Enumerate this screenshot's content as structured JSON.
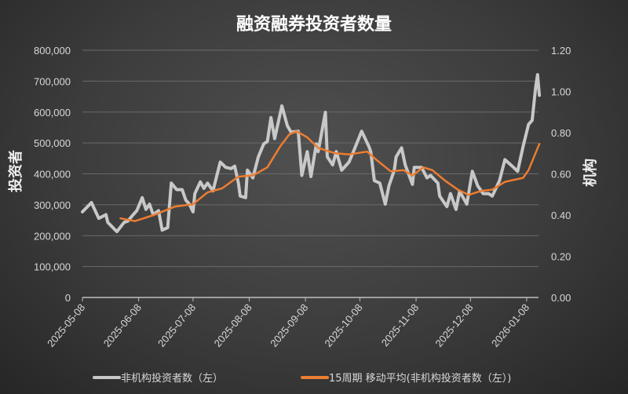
{
  "chart_data": {
    "type": "line",
    "title": "融资融券投资者数量",
    "ylabel": "投资者",
    "y2label": "机构",
    "ylim": [
      0,
      800000
    ],
    "y2lim": [
      0,
      1.2
    ],
    "yticks": [
      "0",
      "100,000",
      "200,000",
      "300,000",
      "400,000",
      "500,000",
      "600,000",
      "700,000",
      "800,000"
    ],
    "y2ticks": [
      "0.00",
      "0.20",
      "0.40",
      "0.60",
      "0.80",
      "1.00",
      "1.20"
    ],
    "xticks": [
      "2025-05-08",
      "2025-06-08",
      "2025-07-08",
      "2025-08-08",
      "2025-09-08",
      "2025-10-08",
      "2025-11-08",
      "2025-12-08",
      "2026-01-08"
    ],
    "grid": true,
    "legend_position": "bottom",
    "series": [
      {
        "name": "非机构投资者数（左）",
        "color": "#c8c8c8",
        "points": [
          [
            "2025-05-08",
            277000
          ],
          [
            "2025-05-13",
            307000
          ],
          [
            "2025-05-17",
            256000
          ],
          [
            "2025-05-21",
            268000
          ],
          [
            "2025-05-22",
            243000
          ],
          [
            "2025-05-27",
            213000
          ],
          [
            "2025-05-31",
            243000
          ],
          [
            "2025-06-02",
            247000
          ],
          [
            "2025-06-05",
            268000
          ],
          [
            "2025-06-07",
            281000
          ],
          [
            "2025-06-10",
            323000
          ],
          [
            "2025-06-12",
            285000
          ],
          [
            "2025-06-14",
            302000
          ],
          [
            "2025-06-16",
            268000
          ],
          [
            "2025-06-19",
            281000
          ],
          [
            "2025-06-21",
            218000
          ],
          [
            "2025-06-24",
            226000
          ],
          [
            "2025-06-26",
            370000
          ],
          [
            "2025-06-29",
            349000
          ],
          [
            "2025-07-02",
            349000
          ],
          [
            "2025-07-04",
            315000
          ],
          [
            "2025-07-06",
            302000
          ],
          [
            "2025-07-08",
            277000
          ],
          [
            "2025-07-09",
            336000
          ],
          [
            "2025-07-12",
            374000
          ],
          [
            "2025-07-14",
            353000
          ],
          [
            "2025-07-16",
            370000
          ],
          [
            "2025-07-19",
            345000
          ],
          [
            "2025-07-23",
            438000
          ],
          [
            "2025-07-26",
            421000
          ],
          [
            "2025-07-29",
            417000
          ],
          [
            "2025-07-31",
            425000
          ],
          [
            "2025-08-02",
            370000
          ],
          [
            "2025-08-03",
            328000
          ],
          [
            "2025-08-06",
            323000
          ],
          [
            "2025-08-07",
            412000
          ],
          [
            "2025-08-10",
            387000
          ],
          [
            "2025-08-13",
            455000
          ],
          [
            "2025-08-16",
            497000
          ],
          [
            "2025-08-18",
            505000
          ],
          [
            "2025-08-20",
            582000
          ],
          [
            "2025-08-22",
            514000
          ],
          [
            "2025-08-26",
            620000
          ],
          [
            "2025-08-29",
            556000
          ],
          [
            "2025-08-31",
            535000
          ],
          [
            "2025-09-04",
            538000
          ],
          [
            "2025-09-06",
            395000
          ],
          [
            "2025-09-09",
            472000
          ],
          [
            "2025-09-11",
            391000
          ],
          [
            "2025-09-14",
            497000
          ],
          [
            "2025-09-15",
            472000
          ],
          [
            "2025-09-19",
            599000
          ],
          [
            "2025-09-20",
            455000
          ],
          [
            "2025-09-23",
            429000
          ],
          [
            "2025-09-25",
            472000
          ],
          [
            "2025-09-28",
            412000
          ],
          [
            "2025-10-02",
            438000
          ],
          [
            "2025-10-05",
            480000
          ],
          [
            "2025-10-09",
            538000
          ],
          [
            "2025-10-13",
            488000
          ],
          [
            "2025-10-14",
            472000
          ],
          [
            "2025-10-16",
            378000
          ],
          [
            "2025-10-19",
            370000
          ],
          [
            "2025-10-22",
            302000
          ],
          [
            "2025-10-24",
            361000
          ],
          [
            "2025-10-27",
            412000
          ],
          [
            "2025-10-28",
            455000
          ],
          [
            "2025-10-31",
            484000
          ],
          [
            "2025-11-02",
            429000
          ],
          [
            "2025-11-06",
            366000
          ],
          [
            "2025-11-07",
            421000
          ],
          [
            "2025-11-11",
            421000
          ],
          [
            "2025-11-14",
            387000
          ],
          [
            "2025-11-16",
            395000
          ],
          [
            "2025-11-20",
            370000
          ],
          [
            "2025-11-21",
            328000
          ],
          [
            "2025-11-25",
            294000
          ],
          [
            "2025-11-27",
            336000
          ],
          [
            "2025-11-30",
            285000
          ],
          [
            "2025-12-02",
            343000
          ],
          [
            "2025-12-06",
            302000
          ],
          [
            "2025-12-09",
            408000
          ],
          [
            "2025-12-12",
            361000
          ],
          [
            "2025-12-15",
            336000
          ],
          [
            "2025-12-18",
            336000
          ],
          [
            "2025-12-20",
            328000
          ],
          [
            "2025-12-24",
            378000
          ],
          [
            "2025-12-27",
            446000
          ],
          [
            "2025-12-31",
            425000
          ],
          [
            "2026-01-03",
            408000
          ],
          [
            "2026-01-06",
            488000
          ],
          [
            "2026-01-09",
            560000
          ],
          [
            "2026-01-11",
            573000
          ],
          [
            "2026-01-13",
            683000
          ],
          [
            "2026-01-14",
            721000
          ],
          [
            "2026-01-15",
            654000
          ]
        ]
      },
      {
        "name": "15周期 移动平均(非机构投资者数（左）)",
        "color": "#ed7d31",
        "points": [
          [
            "2025-05-29",
            256000
          ],
          [
            "2025-06-06",
            247000
          ],
          [
            "2025-06-17",
            268000
          ],
          [
            "2025-06-28",
            294000
          ],
          [
            "2025-07-08",
            302000
          ],
          [
            "2025-07-16",
            340000
          ],
          [
            "2025-07-24",
            353000
          ],
          [
            "2025-08-02",
            391000
          ],
          [
            "2025-08-10",
            395000
          ],
          [
            "2025-08-18",
            421000
          ],
          [
            "2025-08-25",
            488000
          ],
          [
            "2025-08-30",
            527000
          ],
          [
            "2025-09-03",
            538000
          ],
          [
            "2025-09-09",
            518000
          ],
          [
            "2025-09-15",
            484000
          ],
          [
            "2025-09-24",
            467000
          ],
          [
            "2025-10-02",
            463000
          ],
          [
            "2025-10-12",
            472000
          ],
          [
            "2025-10-17",
            446000
          ],
          [
            "2025-10-25",
            408000
          ],
          [
            "2025-11-01",
            412000
          ],
          [
            "2025-11-06",
            395000
          ],
          [
            "2025-11-12",
            421000
          ],
          [
            "2025-11-17",
            412000
          ],
          [
            "2025-11-24",
            378000
          ],
          [
            "2025-12-01",
            349000
          ],
          [
            "2025-12-07",
            332000
          ],
          [
            "2025-12-14",
            345000
          ],
          [
            "2025-12-20",
            349000
          ],
          [
            "2025-12-27",
            374000
          ],
          [
            "2026-01-06",
            387000
          ],
          [
            "2026-01-09",
            412000
          ],
          [
            "2026-01-15",
            497000
          ]
        ]
      }
    ]
  }
}
